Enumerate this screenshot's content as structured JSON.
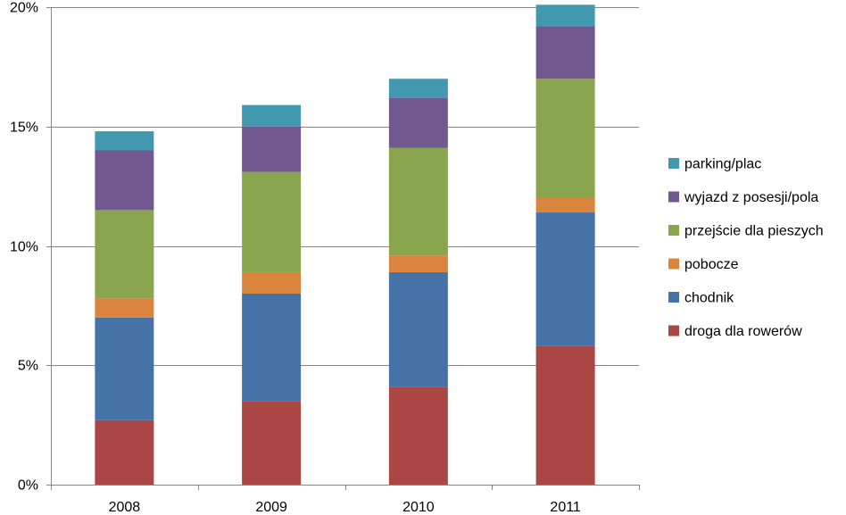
{
  "chart_data": {
    "type": "bar",
    "stacked": true,
    "categories": [
      "2008",
      "2009",
      "2010",
      "2011"
    ],
    "ylim": [
      0,
      0.2
    ],
    "yticks": [
      0,
      0.05,
      0.1,
      0.15,
      0.2
    ],
    "ytick_labels": [
      "0%",
      "5%",
      "10%",
      "15%",
      "20%"
    ],
    "grid": "horizontal",
    "legend_position": "right",
    "series": [
      {
        "name": "droga dla rowerów",
        "color": "#AA4643",
        "values": [
          0.027,
          0.035,
          0.041,
          0.058
        ]
      },
      {
        "name": "chodnik",
        "color": "#4572A7",
        "values": [
          0.043,
          0.045,
          0.048,
          0.056
        ]
      },
      {
        "name": "pobocze",
        "color": "#DB843D",
        "values": [
          0.008,
          0.009,
          0.007,
          0.006
        ]
      },
      {
        "name": "przejście dla pieszych",
        "color": "#89A54E",
        "values": [
          0.037,
          0.042,
          0.045,
          0.05
        ]
      },
      {
        "name": "wyjazd z posesji/pola",
        "color": "#71588F",
        "values": [
          0.025,
          0.019,
          0.021,
          0.022
        ]
      },
      {
        "name": "parking/plac",
        "color": "#4198AF",
        "values": [
          0.008,
          0.009,
          0.008,
          0.009
        ]
      }
    ]
  }
}
